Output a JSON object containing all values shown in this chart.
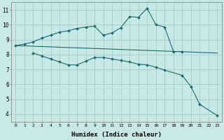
{
  "xlabel": "Humidex (Indice chaleur)",
  "bg_color": "#c8e8e8",
  "grid_color": "#a0c8c8",
  "line_color": "#1a6b6b",
  "line1_x": [
    0,
    1,
    2,
    3,
    4,
    5,
    6,
    7,
    8,
    9,
    10,
    11,
    12,
    13,
    14,
    15,
    16,
    17,
    18,
    19
  ],
  "line1_y": [
    8.6,
    8.7,
    8.85,
    9.1,
    9.3,
    9.5,
    9.6,
    9.75,
    9.85,
    9.9,
    9.3,
    9.45,
    9.8,
    10.55,
    10.5,
    11.1,
    10.0,
    9.85,
    8.2,
    8.2
  ],
  "line2_x": [
    0,
    23
  ],
  "line2_y": [
    8.6,
    8.1
  ],
  "line3_x": [
    2,
    3,
    4,
    5,
    6,
    7,
    8,
    9,
    10,
    11,
    12,
    13,
    14,
    15,
    16,
    17,
    19,
    20,
    21,
    23
  ],
  "line3_y": [
    8.1,
    7.9,
    7.7,
    7.5,
    7.3,
    7.3,
    7.55,
    7.8,
    7.8,
    7.7,
    7.6,
    7.5,
    7.35,
    7.3,
    7.15,
    6.95,
    6.6,
    5.85,
    4.65,
    3.9
  ],
  "xlim": [
    -0.5,
    23.5
  ],
  "ylim": [
    3.5,
    11.5
  ],
  "yticks": [
    4,
    5,
    6,
    7,
    8,
    9,
    10,
    11
  ],
  "xticks": [
    0,
    1,
    2,
    3,
    4,
    5,
    6,
    7,
    8,
    9,
    10,
    11,
    12,
    13,
    14,
    15,
    16,
    17,
    18,
    19,
    20,
    21,
    22,
    23
  ]
}
